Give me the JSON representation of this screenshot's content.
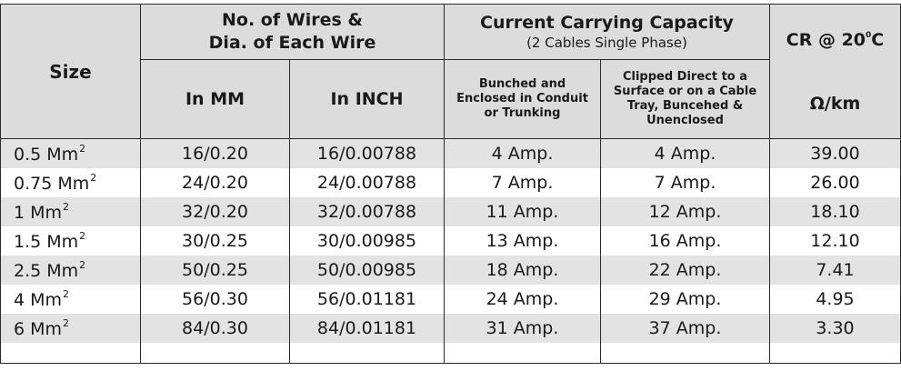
{
  "headers": {
    "size": "Size",
    "wires_title_line1": "No. of Wires &",
    "wires_title_line2": "Dia. of Each Wire",
    "in_mm": "In MM",
    "in_inch": "In INCH",
    "ccc_title": "Current Carrying Capacity",
    "ccc_subtitle": "(2 Cables Single Phase)",
    "bunched": "Bunched and Enclosed in Conduit or Trunking",
    "clipped": "Clipped Direct to a Surface or on a Cable Tray, Buncehed & Unenclosed",
    "cr_prefix": "CR @ 20",
    "cr_degree": "0",
    "cr_suffix": "C",
    "cr_unit": "Ω/km"
  },
  "rows": [
    {
      "size": "0.5 Mm",
      "sup": "2",
      "mm": "16/0.20",
      "inch": "16/0.00788",
      "bunched": "4 Amp.",
      "clipped": "4 Amp.",
      "cr": "39.00"
    },
    {
      "size": "0.75 Mm",
      "sup": "2",
      "mm": "24/0.20",
      "inch": "24/0.00788",
      "bunched": "7 Amp.",
      "clipped": "7 Amp.",
      "cr": "26.00"
    },
    {
      "size": "1 Mm",
      "sup": "2",
      "mm": "32/0.20",
      "inch": "32/0.00788",
      "bunched": "11 Amp.",
      "clipped": "12 Amp.",
      "cr": "18.10"
    },
    {
      "size": "1.5 Mm",
      "sup": "2",
      "mm": "30/0.25",
      "inch": "30/0.00985",
      "bunched": "13 Amp.",
      "clipped": "16 Amp.",
      "cr": "12.10"
    },
    {
      "size": "2.5 Mm",
      "sup": "2",
      "mm": "50/0.25",
      "inch": "50/0.00985",
      "bunched": "18 Amp.",
      "clipped": "22 Amp.",
      "cr": "7.41"
    },
    {
      "size": "4 Mm",
      "sup": "2",
      "mm": "56/0.30",
      "inch": "56/0.01181",
      "bunched": "24 Amp.",
      "clipped": "29 Amp.",
      "cr": "4.95"
    },
    {
      "size": "6 Mm",
      "sup": "2",
      "mm": "84/0.30",
      "inch": "84/0.01181",
      "bunched": "31 Amp.",
      "clipped": "37 Amp.",
      "cr": "3.30"
    }
  ]
}
